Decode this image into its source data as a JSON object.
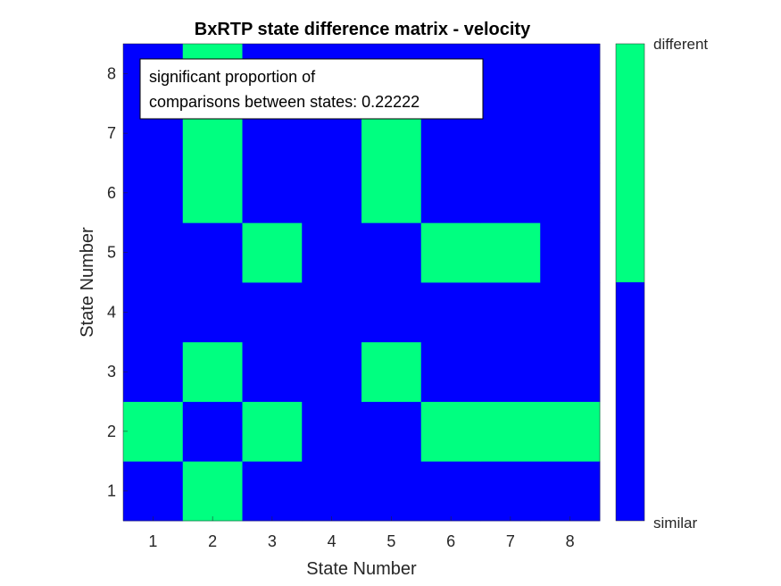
{
  "chart_data": {
    "type": "heatmap",
    "title": "BxRTP state difference matrix - velocity",
    "xlabel": "State Number",
    "ylabel": "State Number",
    "x_ticks": [
      "1",
      "2",
      "3",
      "4",
      "5",
      "6",
      "7",
      "8"
    ],
    "y_ticks": [
      "1",
      "2",
      "3",
      "4",
      "5",
      "6",
      "7",
      "8"
    ],
    "xlim": [
      0.5,
      8.5
    ],
    "ylim": [
      0.5,
      8.5
    ],
    "matrix_rows_from_state_1": [
      [
        0,
        1,
        0,
        0,
        0,
        0,
        0,
        0
      ],
      [
        1,
        0,
        1,
        0,
        0,
        1,
        1,
        1
      ],
      [
        0,
        1,
        0,
        0,
        1,
        0,
        0,
        0
      ],
      [
        0,
        0,
        0,
        0,
        0,
        0,
        0,
        0
      ],
      [
        0,
        0,
        1,
        0,
        0,
        1,
        1,
        0
      ],
      [
        0,
        1,
        0,
        0,
        1,
        0,
        0,
        0
      ],
      [
        0,
        1,
        0,
        0,
        1,
        0,
        0,
        0
      ],
      [
        0,
        1,
        0,
        0,
        0,
        0,
        0,
        0
      ]
    ],
    "colorbar": {
      "labels": [
        "similar",
        "different"
      ],
      "colors": [
        "#0000ff",
        "#00ff80"
      ]
    },
    "annotation": {
      "line1": "significant proportion of",
      "line2": "comparisons between states: 0.22222"
    }
  }
}
